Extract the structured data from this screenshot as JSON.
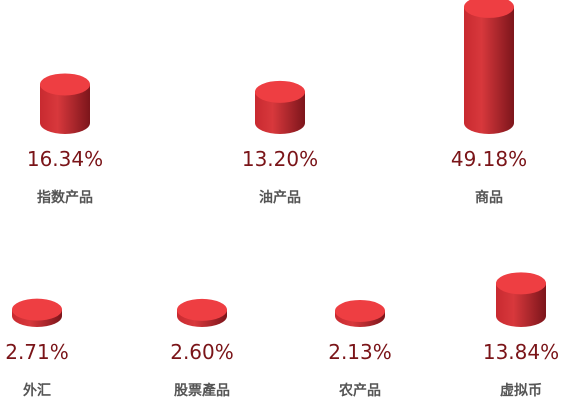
{
  "chart_data": {
    "type": "cylinder",
    "categories": [
      "指数产品",
      "油产品",
      "商品",
      "外汇",
      "股票產品",
      "农产品",
      "虚拟币"
    ],
    "values": [
      16.34,
      13.2,
      49.18,
      2.71,
      2.6,
      2.13,
      13.84
    ],
    "value_labels": [
      "16.34%",
      "13.20%",
      "49.18%",
      "2.71%",
      "2.60%",
      "2.13%",
      "13.84%"
    ],
    "color": "#d8383c"
  }
}
